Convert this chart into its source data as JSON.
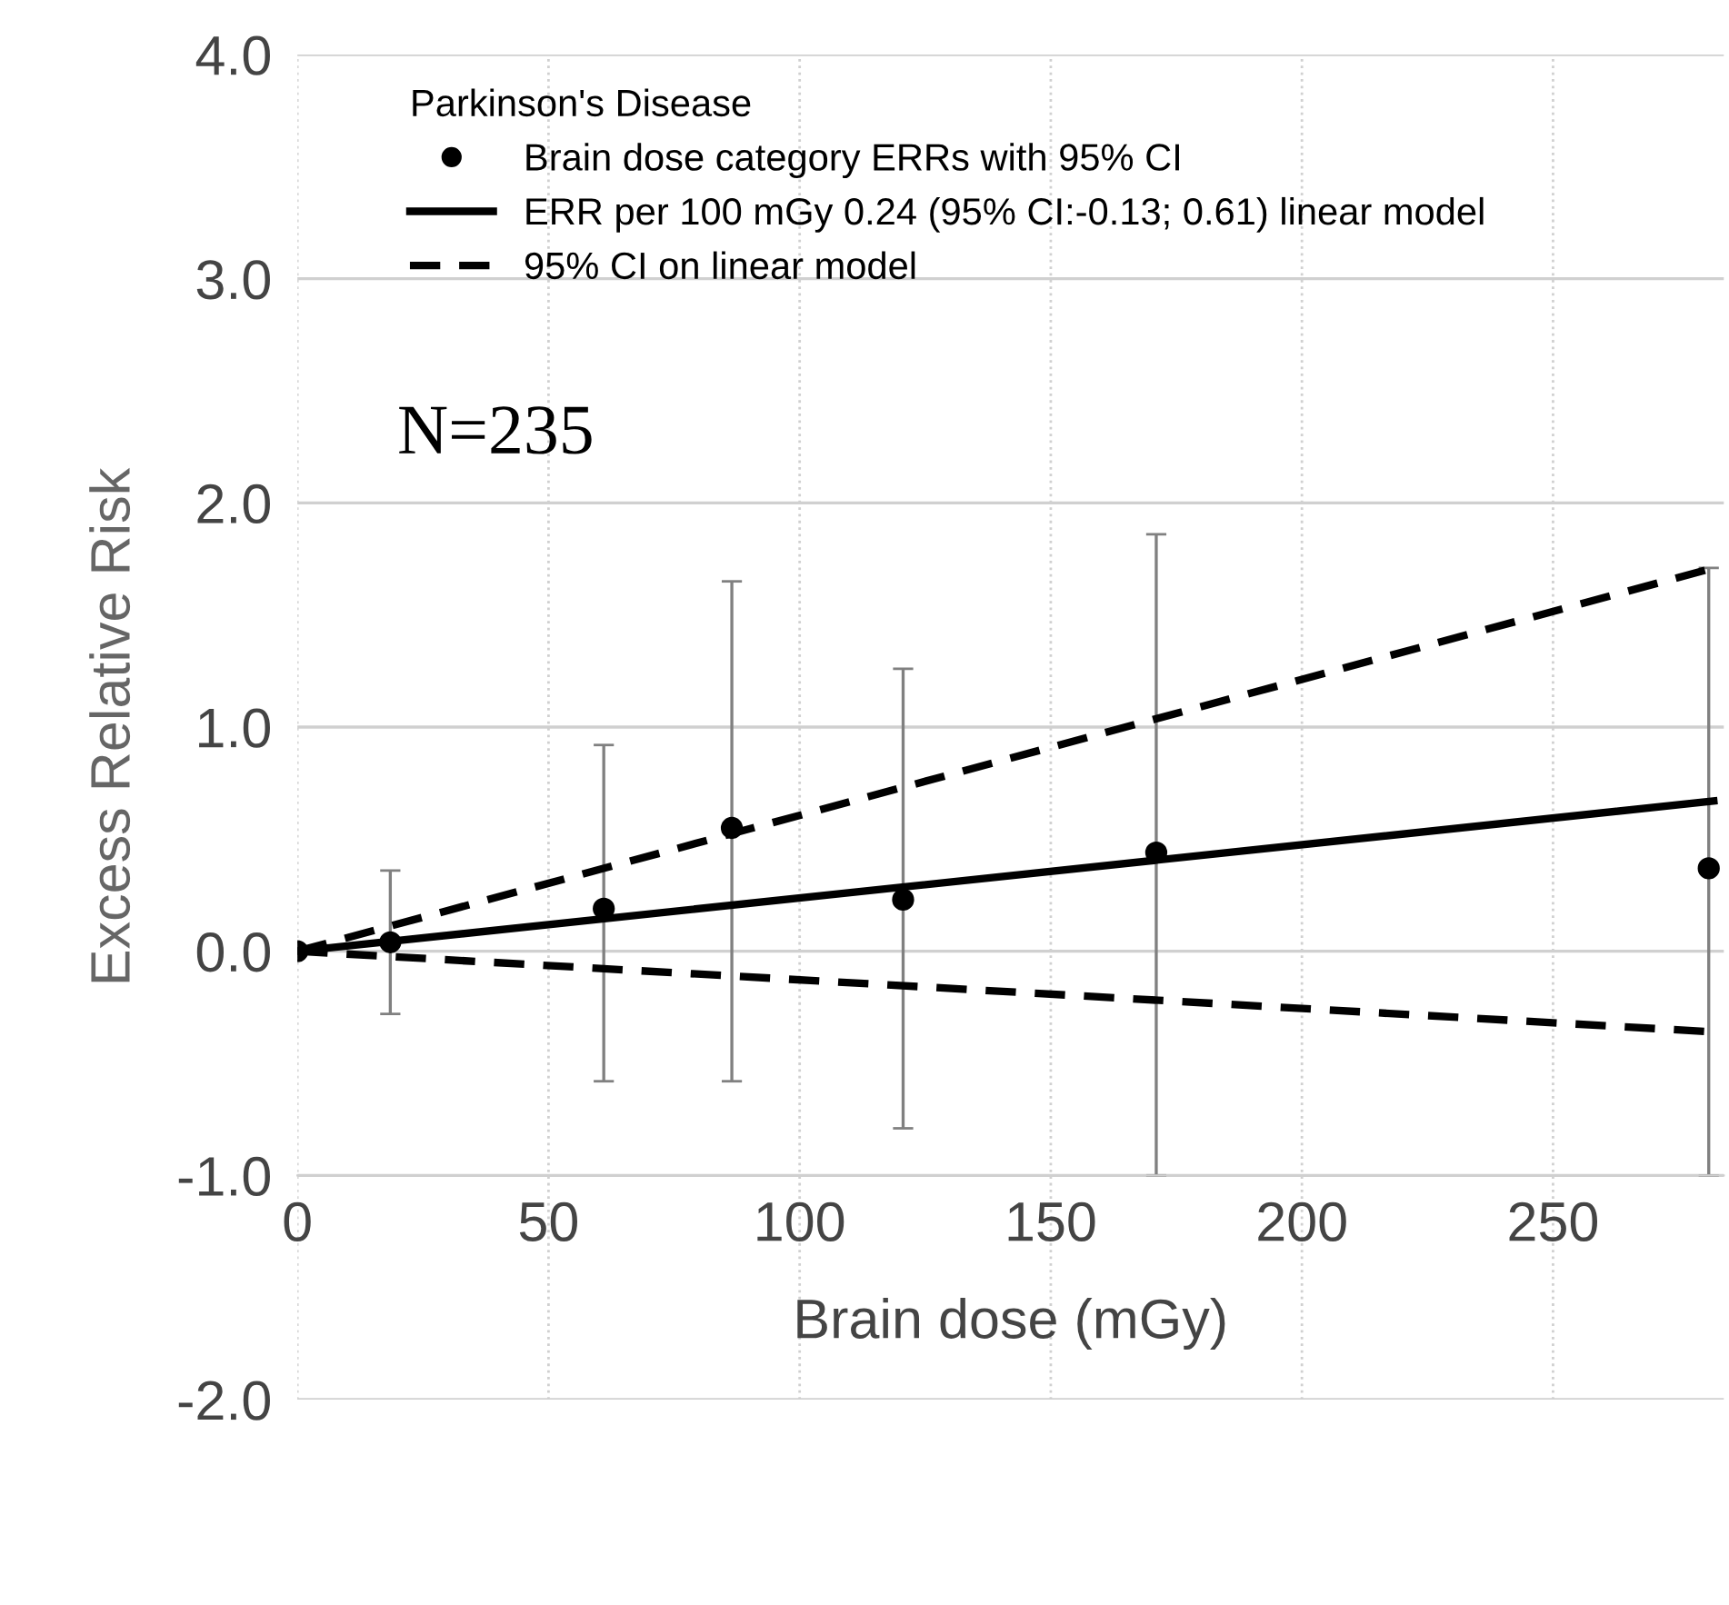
{
  "chart_data": {
    "type": "scatter",
    "xlabel": "Brain dose (mGy)",
    "ylabel": "Excess Relative Risk",
    "legend_title": "Parkinson's Disease",
    "xlim": [
      0,
      284
    ],
    "xticks": [
      0,
      50,
      100,
      150,
      200,
      250
    ],
    "ylim": [
      -2.0,
      4.0
    ],
    "yticks": [
      {
        "value": -2,
        "label": "-2.0"
      },
      {
        "value": -1,
        "label": "-1.0"
      },
      {
        "value": 0,
        "label": "0.0"
      },
      {
        "value": 1,
        "label": "1.0"
      },
      {
        "value": 2,
        "label": "2.0"
      },
      {
        "value": 3,
        "label": "3.0"
      },
      {
        "value": 4,
        "label": "4.0"
      }
    ],
    "grid": true,
    "legend": "top left",
    "series": [
      {
        "name": "Brain dose category ERRs with 95% CI",
        "color": "#000000",
        "marker": "circle",
        "x": [
          0,
          18.5,
          61,
          86.5,
          120.6,
          171,
          281
        ],
        "values": [
          0.0,
          0.04,
          0.19,
          0.55,
          0.23,
          0.44,
          0.37
        ],
        "errors": [
          null,
          [
            -0.28,
            0.36
          ],
          [
            -0.58,
            0.92
          ],
          [
            -0.58,
            1.65
          ],
          [
            -0.79,
            1.26
          ],
          [
            -1.0,
            1.86
          ],
          [
            -1.0,
            1.71
          ]
        ]
      },
      {
        "name": "ERR per 100 mGy 0.24 (95% CI:-0.13; 0.61) linear model",
        "type": "line",
        "color": "#000000",
        "line_style": "solid",
        "x": [
          0,
          282
        ],
        "values": [
          0.0,
          0.67
        ]
      },
      {
        "name": "95% CI on linear model",
        "type": "line",
        "color": "#000000",
        "line_style": "dashed",
        "x": [
          0,
          282
        ],
        "values": [
          0.0,
          1.71
        ]
      },
      {
        "type": "line",
        "color": "#000000",
        "line_style": "dashed",
        "x": [
          0,
          282
        ],
        "values": [
          0.0,
          -0.36
        ]
      }
    ],
    "annotations": [
      "N=235"
    ]
  }
}
